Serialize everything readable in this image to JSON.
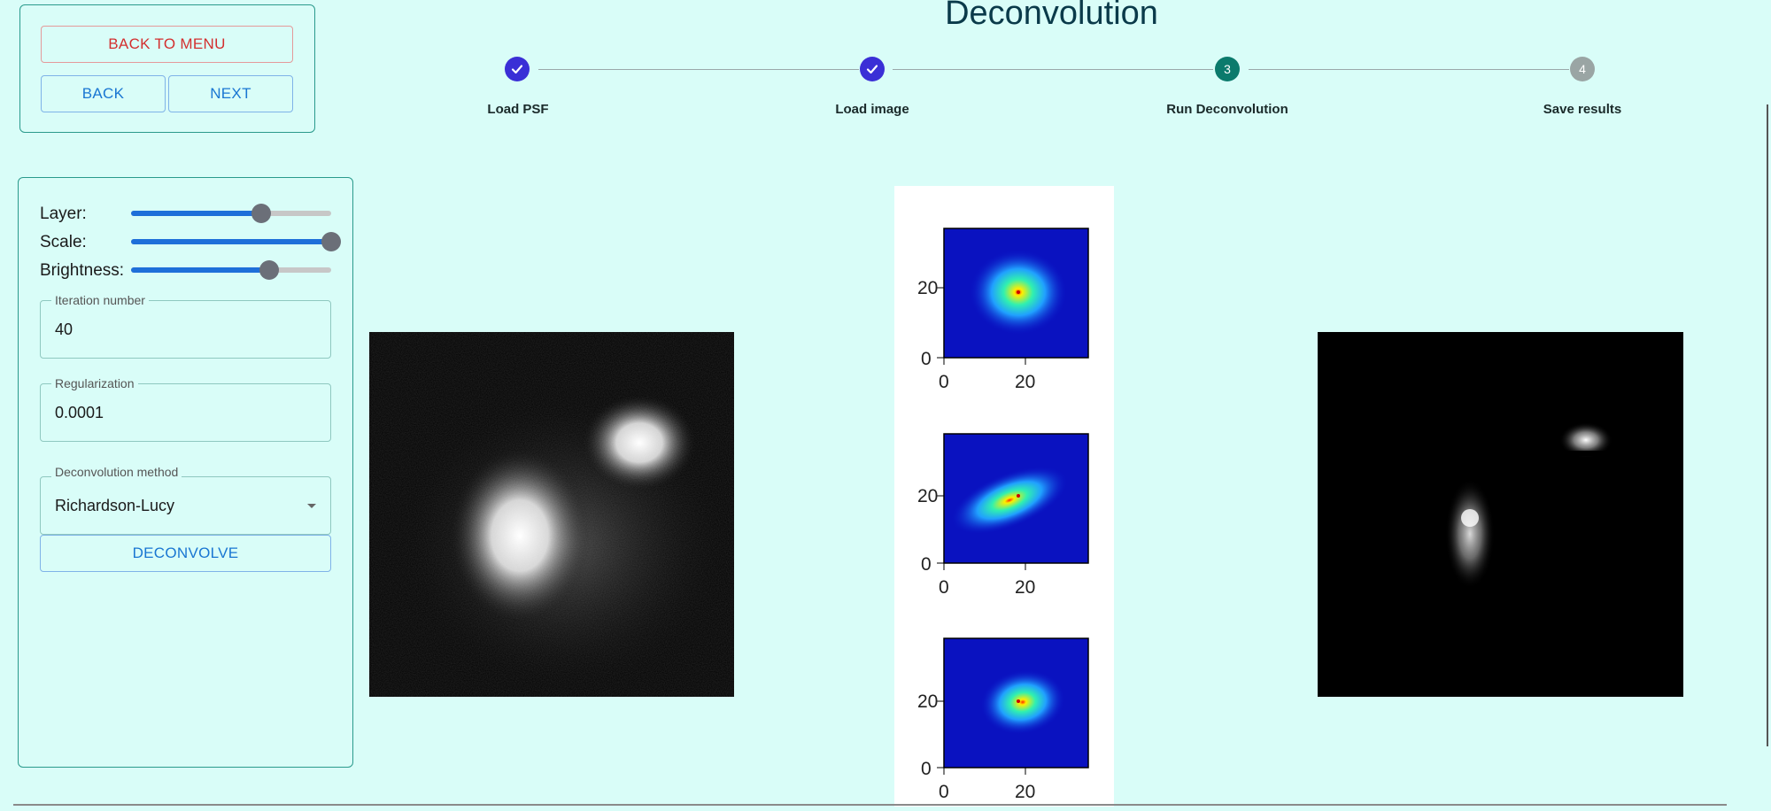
{
  "nav": {
    "back_to_menu": "BACK TO MENU",
    "back": "BACK",
    "next": "NEXT"
  },
  "page_title": "Deconvolution",
  "stepper": {
    "steps": [
      {
        "label": "Load PSF",
        "state": "completed",
        "icon": "check-icon"
      },
      {
        "label": "Load image",
        "state": "completed",
        "icon": "check-icon"
      },
      {
        "label": "Run Deconvolution",
        "state": "active",
        "number": "3"
      },
      {
        "label": "Save results",
        "state": "pending",
        "number": "4"
      }
    ],
    "colors": {
      "completed": "#3a2fd6",
      "active": "#0b7a6c",
      "pending": "#9aa5a4"
    }
  },
  "controls": {
    "layer_label": "Layer:",
    "layer_value": 0.65,
    "scale_label": "Scale:",
    "scale_value": 1.0,
    "brightness_label": "Brightness:",
    "brightness_value": 0.69,
    "iteration": {
      "legend": "Iteration number",
      "value": "40"
    },
    "regularization": {
      "legend": "Regularization",
      "value": "0.0001"
    },
    "method": {
      "legend": "Deconvolution method",
      "value": "Richardson-Lucy"
    },
    "deconvolve_label": "DECONVOLVE"
  },
  "psf_plots": {
    "y_tick_labels": [
      "20",
      "0"
    ],
    "x_tick_labels": [
      "0",
      "20"
    ]
  },
  "colors": {
    "accent_blue": "#1976d2",
    "danger_red": "#d32f2f",
    "border_teal": "#2a9a8c",
    "background": "#d9fdf8"
  }
}
